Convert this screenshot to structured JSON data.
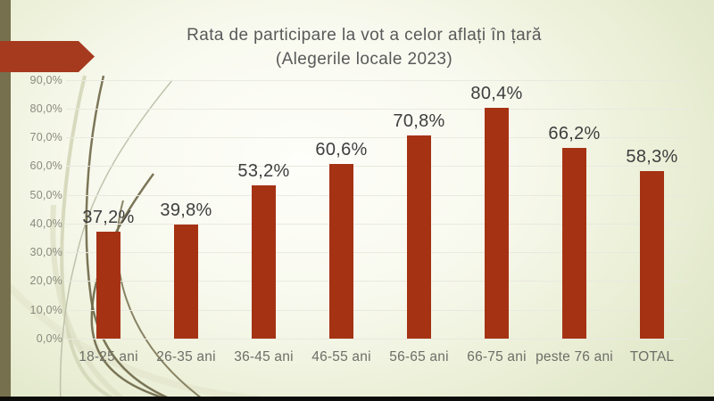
{
  "theme": {
    "bar_color": "#A53213",
    "arrow_color": "#A63A1E",
    "stripe_color": "#76704E",
    "footer_bar_color": "#0C0C09",
    "title_color": "#595959",
    "grid_color": "#E9E9DF",
    "tick_color": "#8A8A7E",
    "category_color": "#6E6E68",
    "value_label_color": "#3E3E3E"
  },
  "chart_data": {
    "type": "bar",
    "title": "Rata de participare la vot a celor aflați în țară",
    "subtitle": "(Alegerile locale 2023)",
    "categories": [
      "18-25 ani",
      "26-35 ani",
      "36-45 ani",
      "46-55 ani",
      "56-65 ani",
      "66-75 ani",
      "peste 76 ani",
      "TOTAL"
    ],
    "values": [
      37.2,
      39.8,
      53.2,
      60.6,
      70.8,
      80.4,
      66.2,
      58.3
    ],
    "value_labels": [
      "37,2%",
      "39,8%",
      "53,2%",
      "60,6%",
      "70,8%",
      "80,4%",
      "66,2%",
      "58,3%"
    ],
    "y_ticks": [
      "90,0%",
      "80,0%",
      "70,0%",
      "60,0%",
      "50,0%",
      "40,0%",
      "30,0%",
      "20,0%",
      "10,0%",
      "0,0%"
    ],
    "ylim": [
      0,
      90
    ],
    "tick_step": 10,
    "grid": true,
    "legend": "none",
    "xlabel": "",
    "ylabel": ""
  }
}
